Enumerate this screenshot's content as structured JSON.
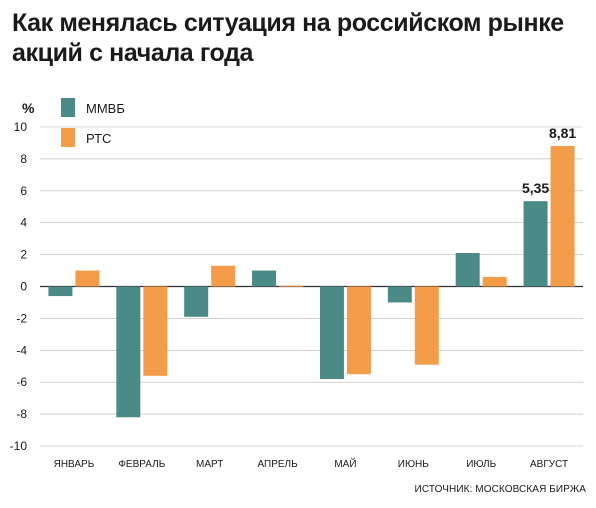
{
  "header": {
    "title_line1": "Как менялась ситуация на российском рынке",
    "title_line2": "акций с начала года"
  },
  "footer": {
    "source": "ИСТОЧНИК: МОСКОВСКАЯ БИРЖА"
  },
  "colors": {
    "mmvb": "#4a8b88",
    "rts": "#f39c4a",
    "grid": "#b3b3b3",
    "text": "#1a1a1a"
  },
  "chart_data": {
    "type": "bar",
    "ylabel": "%",
    "ylim": [
      -10,
      10
    ],
    "yticks": [
      10,
      8,
      6,
      4,
      2,
      0,
      -2,
      -4,
      -6,
      -8,
      -10
    ],
    "grid": true,
    "legend_position": "top-left",
    "categories": [
      "ЯНВАРЬ",
      "ФЕВРАЛЬ",
      "МАРТ",
      "АПРЕЛЬ",
      "МАЙ",
      "ИЮНЬ",
      "ИЮЛЬ",
      "АВГУСТ"
    ],
    "series": [
      {
        "name": "ММВБ",
        "color": "#4a8b88",
        "values": [
          -0.6,
          -8.2,
          -1.9,
          1.0,
          -5.8,
          -1.0,
          2.1,
          5.35
        ]
      },
      {
        "name": "РТС",
        "color": "#f39c4a",
        "values": [
          1.0,
          -5.6,
          1.3,
          0.05,
          -5.5,
          -4.9,
          0.6,
          8.81
        ]
      }
    ],
    "annotations": [
      {
        "series": 0,
        "category": 7,
        "text": "5,35"
      },
      {
        "series": 1,
        "category": 7,
        "text": "8,81"
      }
    ]
  }
}
